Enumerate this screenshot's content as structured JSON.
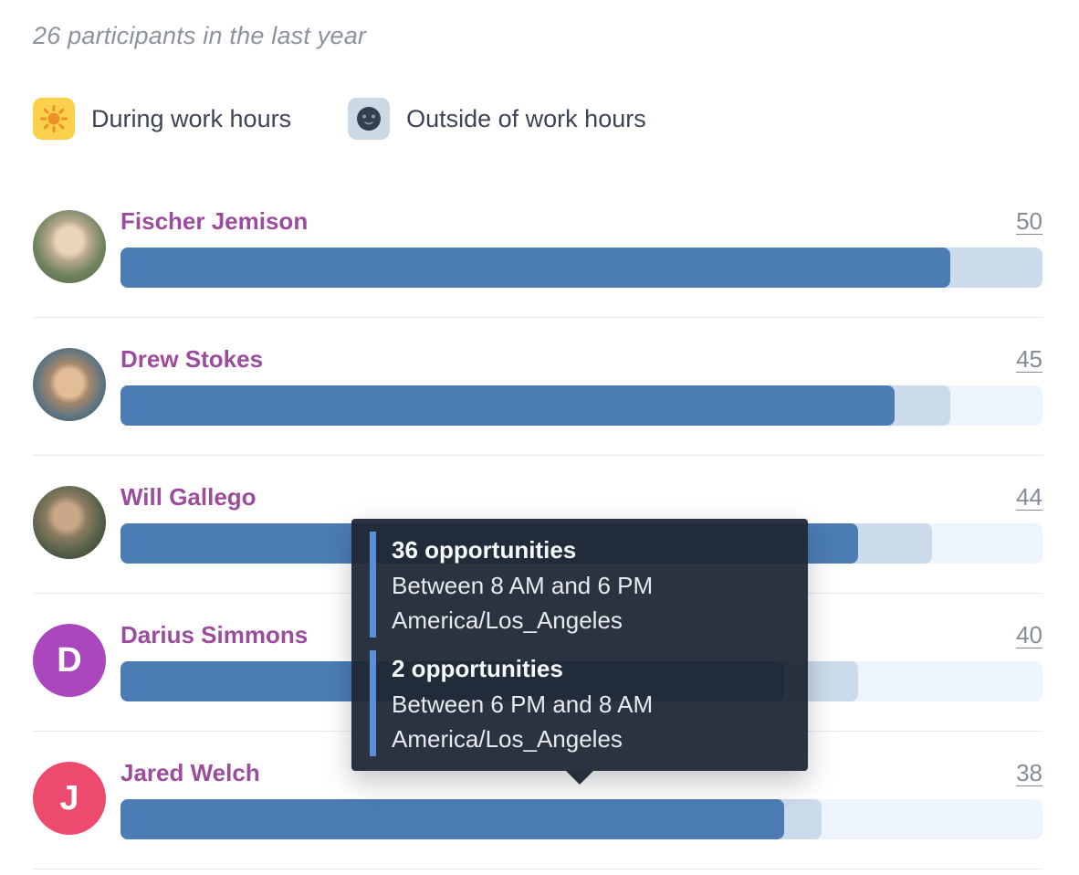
{
  "header": {
    "title": "26 participants in the last year"
  },
  "legend": [
    {
      "label": "During work hours",
      "icon": "sun-icon"
    },
    {
      "label": "Outside of work hours",
      "icon": "moon-icon"
    }
  ],
  "colors": {
    "during_bar": "#4b7cb4",
    "outside_bar": "#cbdbec",
    "track": "#eef4fb",
    "name_text": "#9c4c9c",
    "count_text": "#858c98",
    "tooltip_bg": "#1f2835",
    "tooltip_accent": "#5b8fd9",
    "sun_bg": "#fbd14b",
    "moon_bg": "#ccd8e4"
  },
  "participants": [
    {
      "name": "Fischer Jemison",
      "total": 50,
      "during": 45,
      "outside": 5,
      "avatar": {
        "type": "photo",
        "style": "fischer"
      }
    },
    {
      "name": "Drew Stokes",
      "total": 45,
      "during": 42,
      "outside": 3,
      "avatar": {
        "type": "photo",
        "style": "drew"
      }
    },
    {
      "name": "Will Gallego",
      "total": 44,
      "during": 40,
      "outside": 4,
      "avatar": {
        "type": "photo",
        "style": "will"
      }
    },
    {
      "name": "Darius Simmons",
      "total": 40,
      "during": 36,
      "outside": 4,
      "avatar": {
        "type": "initial",
        "letter": "D",
        "color": "#ab47bc"
      }
    },
    {
      "name": "Jared Welch",
      "total": 38,
      "during": 36,
      "outside": 2,
      "avatar": {
        "type": "initial",
        "letter": "J",
        "color": "#ec4b6d"
      }
    }
  ],
  "tooltip": {
    "sections": [
      {
        "count": "36 opportunities",
        "range": "Between 8 AM and 6 PM",
        "timezone": "America/Los_Angeles"
      },
      {
        "count": "2 opportunities",
        "range": "Between 6 PM and 8 AM",
        "timezone": "America/Los_Angeles"
      }
    ]
  },
  "chart_data": {
    "type": "bar",
    "orientation": "horizontal",
    "title": "26 participants in the last year",
    "categories": [
      "Fischer Jemison",
      "Drew Stokes",
      "Will Gallego",
      "Darius Simmons",
      "Jared Welch"
    ],
    "series": [
      {
        "name": "During work hours",
        "values": [
          45,
          42,
          40,
          36,
          36
        ]
      },
      {
        "name": "Outside of work hours",
        "values": [
          5,
          3,
          4,
          4,
          2
        ]
      }
    ],
    "totals": [
      50,
      45,
      44,
      40,
      38
    ],
    "xlim": [
      0,
      50
    ],
    "legend_position": "top",
    "grid": false
  }
}
